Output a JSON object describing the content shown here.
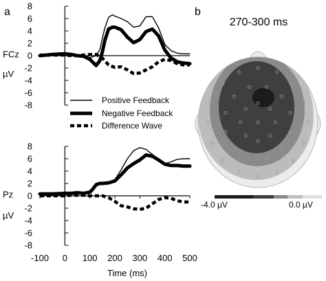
{
  "panels": {
    "a_label": "a",
    "b_label": "b"
  },
  "legend": {
    "entries": [
      "Positive Feedback",
      "Negative Feedback",
      "Difference Wave"
    ]
  },
  "topomap": {
    "time_window": "270-300 ms",
    "colorbar_min_label": "-4.0 µV",
    "colorbar_max_label": "0.0 µV",
    "colors": [
      "#1c1c1c",
      "#3f3f3f",
      "#8a8a8a",
      "#bcbcbc",
      "#dedede"
    ]
  },
  "chart_data": [
    {
      "type": "line",
      "title": "",
      "channel_label": "FCz",
      "ylabel": "µV",
      "xlim": [
        -100,
        500
      ],
      "ylim": [
        -8,
        8
      ],
      "yticks": [
        8,
        6,
        4,
        2,
        0,
        -2,
        -4,
        -6,
        -8
      ],
      "xticks": [],
      "series": [
        {
          "name": "Positive Feedback",
          "style": "thin",
          "x": [
            -100,
            -50,
            0,
            25,
            50,
            75,
            100,
            110,
            125,
            140,
            150,
            160,
            175,
            190,
            200,
            225,
            250,
            275,
            300,
            325,
            350,
            375,
            400,
            425,
            450,
            475,
            500
          ],
          "y": [
            0.1,
            0.3,
            0.4,
            0.2,
            0,
            0,
            -0.3,
            -0.2,
            0,
            1,
            2.8,
            4.5,
            6.2,
            6.6,
            6.4,
            6,
            5.5,
            4.6,
            4.8,
            6.3,
            6.3,
            4.5,
            1.8,
            0.8,
            0.4,
            0.3,
            0.3
          ]
        },
        {
          "name": "Negative Feedback",
          "style": "thick",
          "x": [
            -100,
            -50,
            0,
            25,
            50,
            75,
            100,
            110,
            125,
            140,
            150,
            160,
            175,
            190,
            200,
            225,
            250,
            275,
            300,
            325,
            350,
            375,
            400,
            425,
            450,
            475,
            500
          ],
          "y": [
            0,
            0.2,
            0.3,
            0.2,
            0,
            -0.1,
            -0.6,
            -1,
            -1.6,
            -0.8,
            0.6,
            2.5,
            4.3,
            4.6,
            4.6,
            4.2,
            3,
            2.1,
            2.6,
            3.9,
            4.3,
            3.2,
            0.9,
            -0.4,
            -1,
            -1.2,
            -1.3
          ]
        },
        {
          "name": "Difference Wave",
          "style": "dashed",
          "x": [
            -100,
            -50,
            0,
            25,
            50,
            75,
            100,
            125,
            150,
            175,
            200,
            225,
            250,
            275,
            300,
            325,
            350,
            375,
            400,
            425,
            450,
            475,
            500
          ],
          "y": [
            0.1,
            0.1,
            0.1,
            0,
            0,
            0.1,
            0.2,
            0.2,
            -0.4,
            -1.5,
            -1.9,
            -1.8,
            -2.3,
            -2.9,
            -2.8,
            -2.3,
            -1.8,
            -1,
            -0.6,
            -0.8,
            -1.3,
            -1.5,
            -1.5
          ]
        }
      ]
    },
    {
      "type": "line",
      "title": "",
      "channel_label": "Pz",
      "xlabel": "Time (ms)",
      "ylabel": "µV",
      "xlim": [
        -100,
        500
      ],
      "ylim": [
        -8,
        8
      ],
      "yticks": [
        8,
        6,
        4,
        2,
        0,
        -2,
        -4,
        -6,
        -8
      ],
      "xticks": [
        -100,
        0,
        100,
        200,
        300,
        400,
        500
      ],
      "series": [
        {
          "name": "Positive Feedback",
          "style": "thin",
          "x": [
            -100,
            -50,
            0,
            25,
            50,
            75,
            100,
            110,
            125,
            140,
            150,
            175,
            200,
            225,
            250,
            275,
            300,
            325,
            350,
            375,
            400,
            425,
            450,
            475,
            500
          ],
          "y": [
            0.2,
            0.3,
            0.4,
            0.5,
            0.6,
            0.5,
            0.6,
            1,
            1.8,
            2,
            2,
            2.1,
            2.6,
            4.2,
            6,
            7.3,
            7.8,
            7.5,
            6.7,
            5.9,
            5.2,
            5.5,
            5.9,
            6,
            6
          ]
        },
        {
          "name": "Negative Feedback",
          "style": "thick",
          "x": [
            -100,
            -50,
            0,
            25,
            50,
            75,
            100,
            110,
            125,
            140,
            150,
            175,
            200,
            225,
            250,
            275,
            300,
            325,
            350,
            375,
            400,
            425,
            450,
            475,
            500
          ],
          "y": [
            0.3,
            0.3,
            0.4,
            0.4,
            0.5,
            0.4,
            0.6,
            1,
            1.8,
            2,
            2,
            2.1,
            2.4,
            3.4,
            4.5,
            5.2,
            5.8,
            6.6,
            6.4,
            5.8,
            5.1,
            4.9,
            4.9,
            4.8,
            4.8
          ]
        },
        {
          "name": "Difference Wave",
          "style": "dashed",
          "x": [
            -100,
            -50,
            0,
            25,
            50,
            75,
            100,
            125,
            150,
            175,
            200,
            225,
            250,
            275,
            300,
            325,
            350,
            375,
            400,
            425,
            450,
            475,
            500
          ],
          "y": [
            0,
            0,
            0,
            0.1,
            0.1,
            0.1,
            0,
            0,
            0,
            -0.3,
            -0.9,
            -1.6,
            -1.8,
            -2.1,
            -2.2,
            -2,
            -1.3,
            -0.6,
            -0.3,
            -0.4,
            -0.8,
            -1,
            -1
          ]
        }
      ]
    }
  ]
}
